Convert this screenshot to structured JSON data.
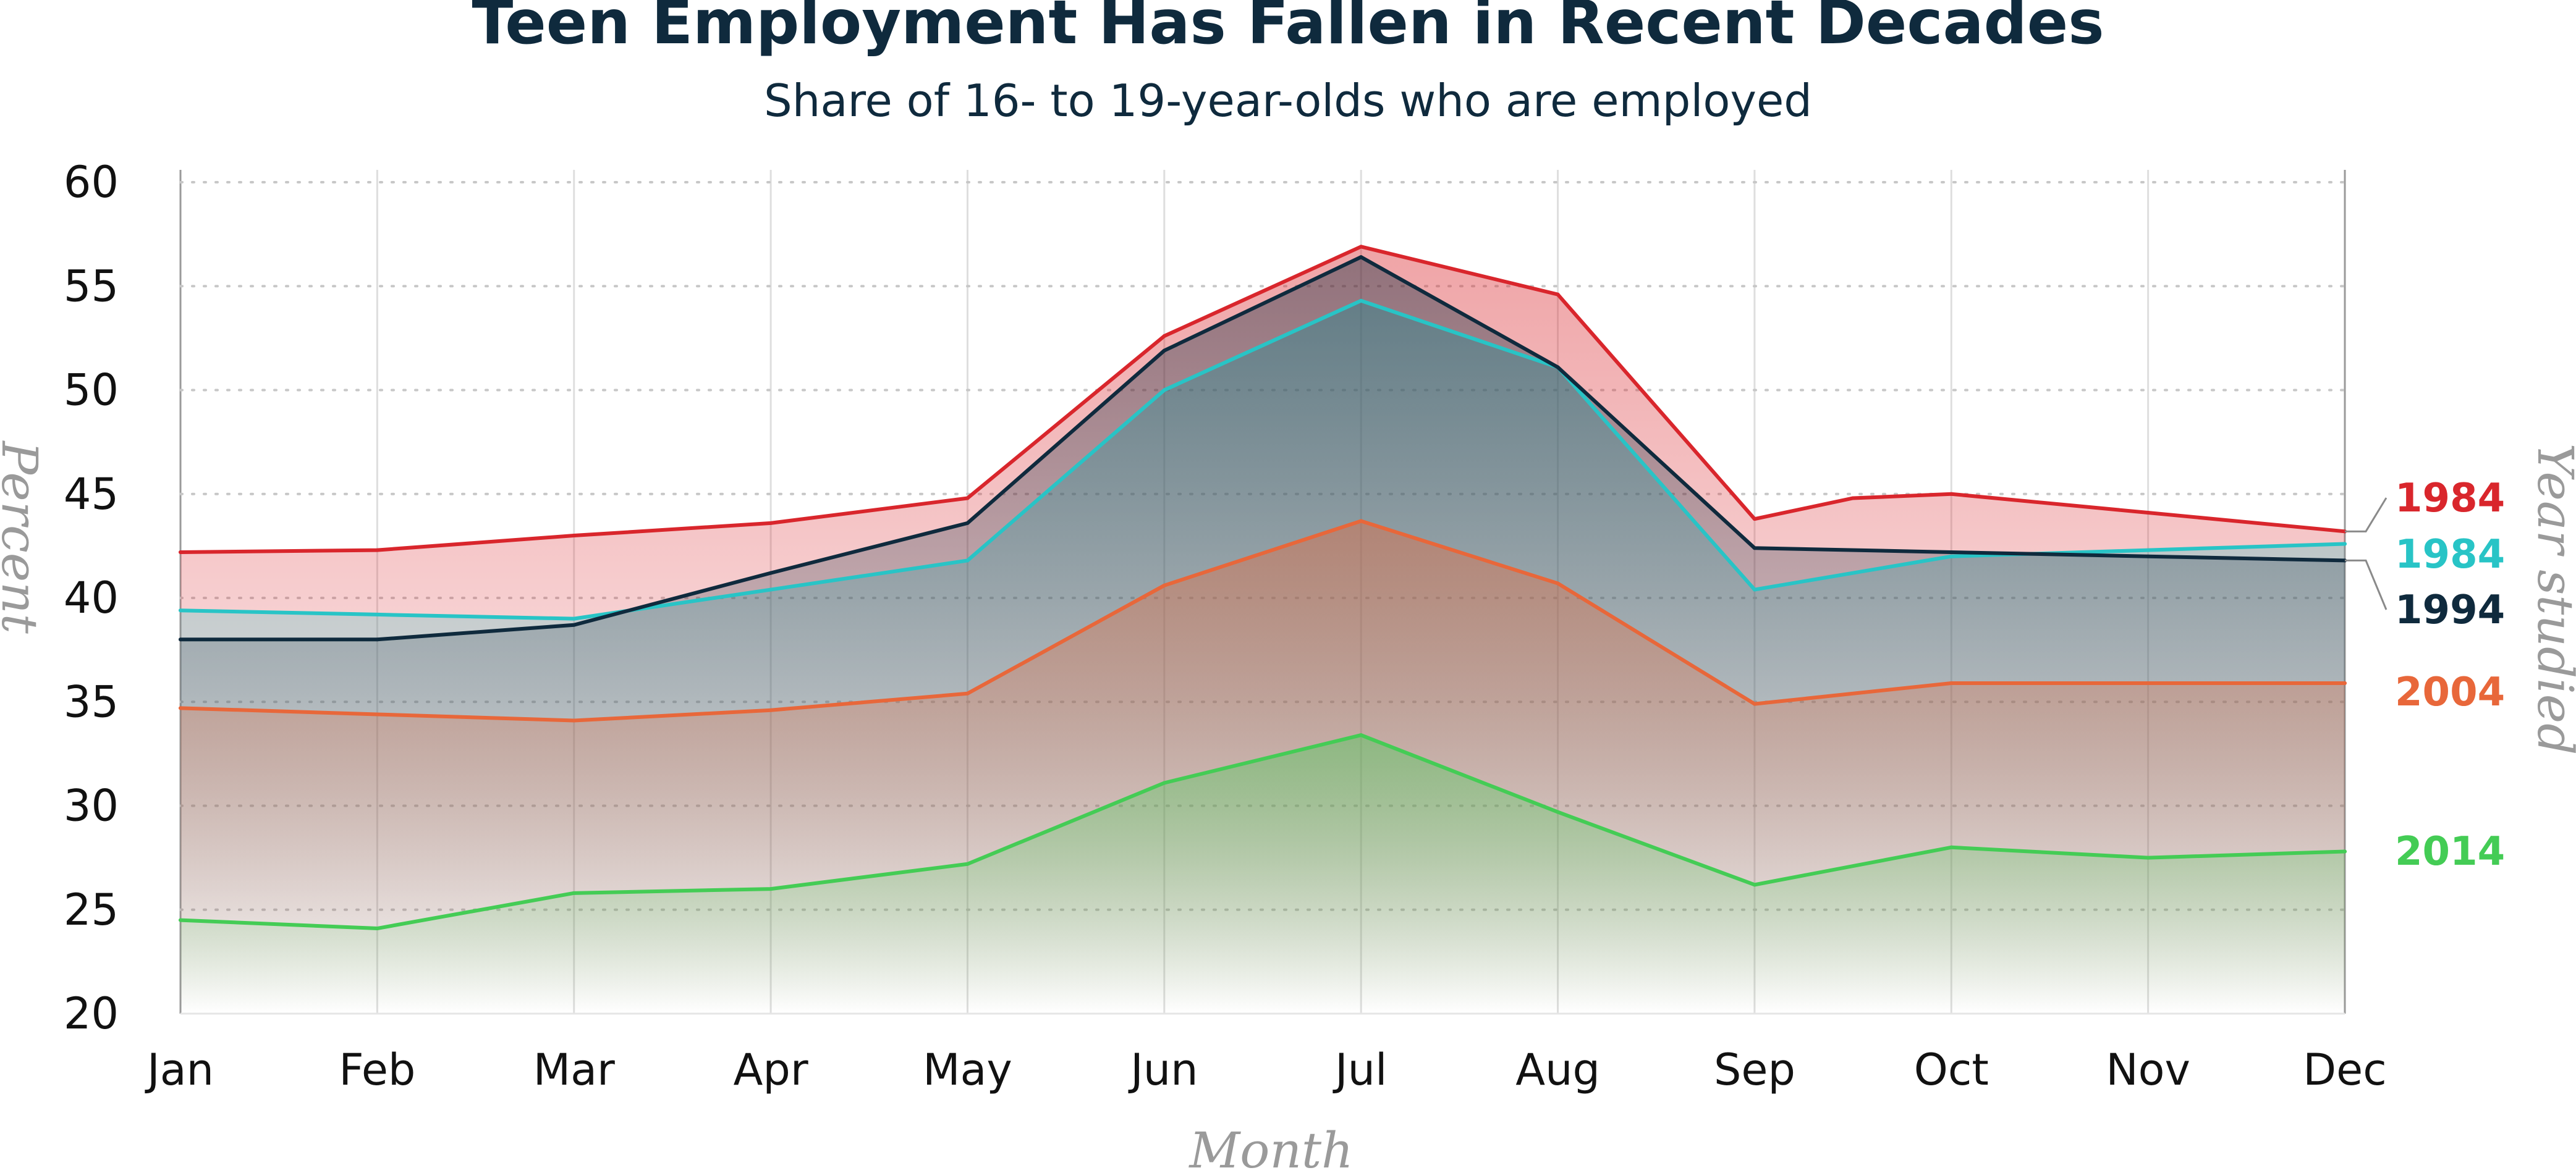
{
  "chart_data": {
    "type": "area",
    "title": "Teen Employment Has Fallen in Recent Decades",
    "subtitle": "Share of 16- to 19-year-olds who are employed",
    "xlabel": "Month",
    "ylabel": "Percent",
    "legend_title": "Year studied",
    "legend_position": "right",
    "grid": true,
    "ylim": [
      20,
      60
    ],
    "yticks": [
      20,
      25,
      30,
      35,
      40,
      45,
      50,
      55,
      60
    ],
    "categories": [
      "Jan",
      "Feb",
      "Mar",
      "Apr",
      "May",
      "Jun",
      "Jul",
      "Aug",
      "Sep",
      "Oct",
      "Nov",
      "Dec"
    ],
    "series": [
      {
        "name": "1984",
        "color": "#d9262c",
        "x": [
          "Jan",
          "Feb",
          "Mar",
          "Apr",
          "May",
          "Jun",
          "Jul",
          "Aug",
          "Sep",
          "Sep–Oct",
          "Oct",
          "Nov",
          "Dec"
        ],
        "values": [
          42.2,
          42.3,
          43.0,
          43.6,
          44.8,
          52.6,
          56.9,
          54.6,
          43.8,
          44.8,
          45.0,
          44.1,
          43.2
        ]
      },
      {
        "name": "1984",
        "color": "#28c4c6",
        "x": [
          "Jan",
          "Feb",
          "Mar",
          "Apr",
          "May",
          "Jun",
          "Jul",
          "Aug",
          "Sep",
          "Oct",
          "Nov",
          "Dec"
        ],
        "values": [
          39.4,
          39.2,
          39.0,
          40.4,
          41.8,
          50.0,
          54.3,
          51.1,
          40.4,
          42.0,
          42.3,
          42.6
        ]
      },
      {
        "name": "1994",
        "color": "#0f2a3d",
        "x": [
          "Jan",
          "Feb",
          "Mar",
          "Apr",
          "May",
          "Jun",
          "Jul",
          "Aug",
          "Sep",
          "Oct",
          "Nov",
          "Dec"
        ],
        "values": [
          38.0,
          38.0,
          38.7,
          41.2,
          43.6,
          51.9,
          56.4,
          51.1,
          42.4,
          42.2,
          42.0,
          41.8
        ]
      },
      {
        "name": "2004",
        "color": "#e8673a",
        "x": [
          "Jan",
          "Feb",
          "Mar",
          "Apr",
          "May",
          "Jun",
          "Jul",
          "Aug",
          "Sep",
          "Oct",
          "Nov",
          "Dec"
        ],
        "values": [
          34.7,
          34.4,
          34.1,
          34.6,
          35.4,
          40.6,
          43.7,
          40.7,
          34.9,
          35.9,
          35.9,
          35.9
        ]
      },
      {
        "name": "2014",
        "color": "#44cc55",
        "x": [
          "Jan",
          "Feb",
          "Mar",
          "Apr",
          "May",
          "Jun",
          "Jul",
          "Aug",
          "Sep",
          "Oct",
          "Nov",
          "Dec"
        ],
        "values": [
          24.5,
          24.1,
          25.8,
          26.0,
          27.2,
          31.1,
          33.4,
          29.7,
          26.2,
          28.0,
          27.5,
          27.8
        ]
      }
    ]
  }
}
